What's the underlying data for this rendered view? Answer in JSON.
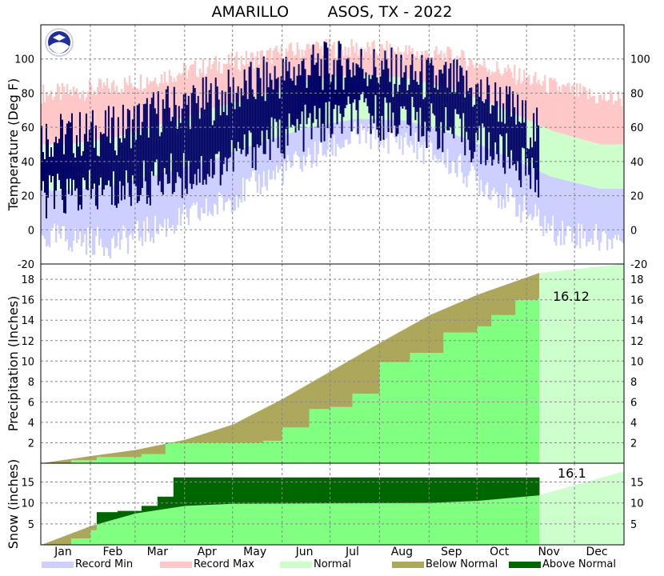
{
  "title": "AMARILLO        ASOS, TX - 2022",
  "colors": {
    "record_min": "#cccfff",
    "record_max": "#ffc8c8",
    "normal": "#ccffcc",
    "below_normal": "#aca75a",
    "above_normal": "#006600",
    "observed_temp": "#000066",
    "observed_precip": "#80ff80",
    "grid": "#888888"
  },
  "months": [
    "Jan",
    "Feb",
    "Mar",
    "Apr",
    "May",
    "Jun",
    "Jul",
    "Aug",
    "Sep",
    "Oct",
    "Nov",
    "Dec"
  ],
  "legend": [
    {
      "label": "Record Min",
      "color": "#cccfff"
    },
    {
      "label": "Record Max",
      "color": "#ffc8c8"
    },
    {
      "label": "Normal",
      "color": "#ccffcc"
    },
    {
      "label": "Below Normal",
      "color": "#aca75a"
    },
    {
      "label": "Above Normal",
      "color": "#006600"
    }
  ],
  "chart_data": [
    {
      "type": "area",
      "panel": "temperature",
      "ylabel": "Temperature (Deg F)",
      "ylim": [
        -20,
        120
      ],
      "yticks": [
        -20,
        0,
        20,
        40,
        60,
        80,
        100
      ],
      "right_ticks": [
        -20,
        0,
        20,
        40,
        60,
        80,
        100
      ],
      "grid": true,
      "x_dates": [
        "2022-01-15",
        "2022-02-15",
        "2022-03-15",
        "2022-04-15",
        "2022-05-15",
        "2022-06-15",
        "2022-07-15",
        "2022-08-15",
        "2022-09-15",
        "2022-10-15",
        "2022-11-15",
        "2022-12-15"
      ],
      "series": [
        {
          "name": "Record Max",
          "values": [
            80,
            84,
            90,
            96,
            101,
            106,
            106,
            104,
            101,
            93,
            84,
            77
          ]
        },
        {
          "name": "Record Min",
          "values": [
            -5,
            -8,
            2,
            12,
            28,
            42,
            55,
            52,
            38,
            20,
            0,
            -5
          ]
        },
        {
          "name": "Normal",
          "high": [
            50,
            54,
            62,
            71,
            79,
            88,
            91,
            89,
            82,
            71,
            58,
            50
          ],
          "low": [
            23,
            26,
            33,
            41,
            51,
            60,
            65,
            64,
            56,
            44,
            31,
            24
          ]
        },
        {
          "name": "Observed",
          "high": [
            55,
            58,
            70,
            76,
            86,
            95,
            97,
            90,
            86,
            74,
            50
          ],
          "low": [
            20,
            22,
            30,
            36,
            50,
            60,
            67,
            65,
            57,
            44,
            28
          ]
        }
      ],
      "observed_end": "2022-11-08"
    },
    {
      "type": "area",
      "panel": "precipitation",
      "ylabel": "Precipitation (Inches)",
      "ylim": [
        0,
        19.5
      ],
      "yticks": [
        2,
        4,
        6,
        8,
        10,
        12,
        14,
        16,
        18
      ],
      "grid": true,
      "annotation": "16.12",
      "normal_cumulative": {
        "dates": [
          "2022-01-01",
          "2022-02-01",
          "2022-03-01",
          "2022-04-01",
          "2022-05-01",
          "2022-06-01",
          "2022-07-01",
          "2022-08-01",
          "2022-09-01",
          "2022-10-01",
          "2022-11-08",
          "2022-12-31"
        ],
        "values": [
          0,
          0.7,
          1.3,
          2.3,
          3.8,
          6.3,
          9.0,
          11.8,
          14.5,
          16.5,
          18.6,
          19.5
        ]
      },
      "observed_cumulative": {
        "dates": [
          "2022-01-01",
          "2022-01-20",
          "2022-02-05",
          "2022-03-05",
          "2022-03-20",
          "2022-05-20",
          "2022-06-01",
          "2022-06-18",
          "2022-07-01",
          "2022-07-15",
          "2022-08-01",
          "2022-08-20",
          "2022-09-10",
          "2022-10-01",
          "2022-10-10",
          "2022-10-25",
          "2022-11-08"
        ],
        "values": [
          0,
          0.3,
          0.6,
          0.9,
          2.0,
          2.2,
          3.5,
          5.3,
          5.5,
          6.8,
          9.9,
          10.8,
          12.8,
          13.4,
          14.5,
          16.0,
          16.12
        ]
      }
    },
    {
      "type": "area",
      "panel": "snow",
      "ylabel": "Snow (inches)",
      "ylim": [
        0,
        19.5
      ],
      "yticks": [
        5,
        10,
        15
      ],
      "grid": true,
      "annotation": "16.1",
      "normal_cumulative": {
        "dates": [
          "2022-01-01",
          "2022-02-01",
          "2022-03-01",
          "2022-04-01",
          "2022-05-01",
          "2022-09-01",
          "2022-10-01",
          "2022-11-08",
          "2022-12-31"
        ],
        "values": [
          0,
          4.5,
          7.5,
          9.3,
          9.8,
          10.0,
          10.5,
          11.8,
          17.5
        ]
      },
      "observed_cumulative": {
        "dates": [
          "2022-01-01",
          "2022-01-20",
          "2022-02-01",
          "2022-02-05",
          "2022-02-18",
          "2022-03-05",
          "2022-03-15",
          "2022-03-25",
          "2022-11-08"
        ],
        "values": [
          0,
          1.5,
          3.5,
          7.8,
          8.1,
          9.3,
          11.5,
          16.1,
          16.1
        ]
      }
    }
  ]
}
